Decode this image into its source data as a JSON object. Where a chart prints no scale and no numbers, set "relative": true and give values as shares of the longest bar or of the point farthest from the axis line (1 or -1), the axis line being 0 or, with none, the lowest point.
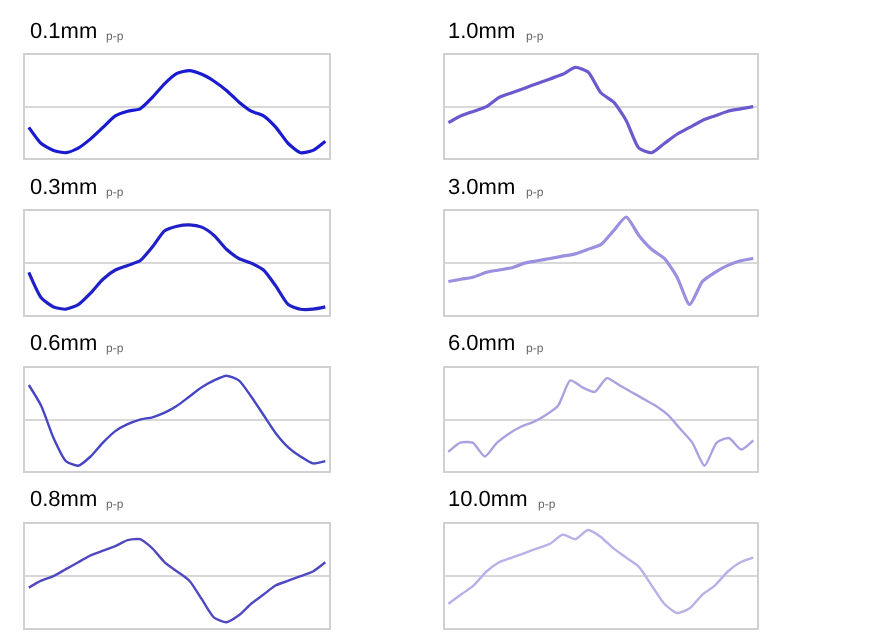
{
  "chart_data": [
    {
      "type": "line",
      "title": "0.1mm",
      "subtitle": "p-p",
      "relative": true,
      "marker": "none",
      "categories": [
        null,
        null,
        null,
        null,
        null,
        null,
        null,
        null,
        null,
        null,
        null,
        null,
        null,
        null,
        null,
        null,
        null,
        null,
        null,
        null,
        null,
        null,
        null,
        null,
        null
      ],
      "series": [
        {
          "color": "#1a1ad0",
          "values": [
            -0.45,
            -0.8,
            -0.95,
            -1.0,
            -0.9,
            -0.7,
            -0.45,
            -0.2,
            -0.1,
            -0.05,
            0.2,
            0.5,
            0.72,
            0.78,
            0.7,
            0.55,
            0.35,
            0.1,
            -0.1,
            -0.2,
            -0.45,
            -0.8,
            -1.0,
            -0.95,
            -0.75
          ]
        }
      ]
    },
    {
      "type": "line",
      "title": "1.0mm",
      "subtitle": "p-p",
      "relative": true,
      "marker": "none",
      "categories": [
        null,
        null,
        null,
        null,
        null,
        null,
        null,
        null,
        null,
        null,
        null,
        null,
        null,
        null,
        null,
        null,
        null,
        null,
        null,
        null,
        null,
        null,
        null,
        null,
        null
      ],
      "series": [
        {
          "color": "#6a5acd",
          "values": [
            -0.35,
            -0.2,
            -0.1,
            0.0,
            0.2,
            0.3,
            0.4,
            0.5,
            0.6,
            0.7,
            0.85,
            0.75,
            0.3,
            0.1,
            -0.3,
            -0.9,
            -1.0,
            -0.8,
            -0.6,
            -0.45,
            -0.3,
            -0.2,
            -0.1,
            -0.05,
            0.0
          ]
        }
      ]
    },
    {
      "type": "line",
      "title": "0.3mm",
      "subtitle": "p-p",
      "relative": true,
      "marker": "none",
      "categories": [
        null,
        null,
        null,
        null,
        null,
        null,
        null,
        null,
        null,
        null,
        null,
        null,
        null,
        null,
        null,
        null,
        null,
        null,
        null,
        null,
        null,
        null,
        null,
        null,
        null
      ],
      "series": [
        {
          "color": "#2020c8",
          "values": [
            -0.2,
            -0.75,
            -0.95,
            -1.0,
            -0.9,
            -0.65,
            -0.35,
            -0.15,
            -0.05,
            0.05,
            0.35,
            0.7,
            0.8,
            0.83,
            0.78,
            0.6,
            0.3,
            0.1,
            0.0,
            -0.15,
            -0.5,
            -0.9,
            -1.0,
            -1.0,
            -0.95
          ]
        }
      ]
    },
    {
      "type": "line",
      "title": "3.0mm",
      "subtitle": "p-p",
      "relative": true,
      "marker": "none",
      "categories": [
        null,
        null,
        null,
        null,
        null,
        null,
        null,
        null,
        null,
        null,
        null,
        null,
        null,
        null,
        null,
        null,
        null,
        null,
        null,
        null,
        null,
        null,
        null,
        null,
        null
      ],
      "series": [
        {
          "color": "#9a90e0",
          "values": [
            -0.4,
            -0.35,
            -0.3,
            -0.2,
            -0.15,
            -0.1,
            0.0,
            0.05,
            0.1,
            0.15,
            0.2,
            0.3,
            0.4,
            0.7,
            1.0,
            0.6,
            0.3,
            0.1,
            -0.3,
            -0.9,
            -0.4,
            -0.2,
            -0.05,
            0.05,
            0.1
          ]
        }
      ]
    },
    {
      "type": "line",
      "title": "0.6mm",
      "subtitle": "p-p",
      "relative": true,
      "marker": "none",
      "categories": [
        null,
        null,
        null,
        null,
        null,
        null,
        null,
        null,
        null,
        null,
        null,
        null,
        null,
        null,
        null,
        null,
        null,
        null,
        null,
        null,
        null,
        null,
        null,
        null,
        null
      ],
      "series": [
        {
          "color": "#4646c4",
          "values": [
            0.75,
            0.3,
            -0.4,
            -0.9,
            -1.0,
            -0.8,
            -0.5,
            -0.25,
            -0.1,
            0.0,
            0.05,
            0.15,
            0.3,
            0.5,
            0.7,
            0.85,
            0.95,
            0.85,
            0.5,
            0.1,
            -0.3,
            -0.6,
            -0.8,
            -0.95,
            -0.9
          ]
        }
      ]
    },
    {
      "type": "line",
      "title": "6.0mm",
      "subtitle": "p-p",
      "relative": true,
      "marker": "none",
      "categories": [
        null,
        null,
        null,
        null,
        null,
        null,
        null,
        null,
        null,
        null,
        null,
        null,
        null,
        null,
        null,
        null,
        null,
        null,
        null,
        null,
        null,
        null,
        null,
        null,
        null,
        null
      ],
      "series": [
        {
          "color": "#aaa2e0",
          "values": [
            -0.7,
            -0.5,
            -0.5,
            -0.8,
            -0.5,
            -0.3,
            -0.15,
            -0.05,
            0.1,
            0.3,
            0.85,
            0.7,
            0.6,
            0.9,
            0.75,
            0.6,
            0.45,
            0.3,
            0.1,
            -0.2,
            -0.5,
            -1.0,
            -0.5,
            -0.4,
            -0.65,
            -0.45
          ]
        }
      ]
    },
    {
      "type": "line",
      "title": "0.8mm",
      "subtitle": "p-p",
      "relative": true,
      "marker": "none",
      "categories": [
        null,
        null,
        null,
        null,
        null,
        null,
        null,
        null,
        null,
        null,
        null,
        null,
        null,
        null,
        null,
        null,
        null,
        null,
        null,
        null,
        null,
        null,
        null,
        null,
        null
      ],
      "series": [
        {
          "color": "#5048c0",
          "values": [
            -0.25,
            -0.1,
            0.0,
            0.15,
            0.3,
            0.45,
            0.55,
            0.65,
            0.78,
            0.8,
            0.6,
            0.3,
            0.1,
            -0.1,
            -0.5,
            -0.9,
            -1.0,
            -0.85,
            -0.6,
            -0.4,
            -0.2,
            -0.1,
            0.0,
            0.1,
            0.3
          ]
        }
      ]
    },
    {
      "type": "line",
      "title": "10.0mm",
      "subtitle": "p-p",
      "relative": true,
      "marker": "none",
      "categories": [
        null,
        null,
        null,
        null,
        null,
        null,
        null,
        null,
        null,
        null,
        null,
        null,
        null,
        null,
        null,
        null,
        null,
        null,
        null,
        null,
        null,
        null,
        null,
        null,
        null
      ],
      "series": [
        {
          "color": "#b8b0e6",
          "values": [
            -0.6,
            -0.4,
            -0.2,
            0.1,
            0.3,
            0.4,
            0.5,
            0.6,
            0.7,
            0.9,
            0.8,
            1.0,
            0.85,
            0.6,
            0.4,
            0.2,
            -0.2,
            -0.6,
            -0.8,
            -0.7,
            -0.4,
            -0.2,
            0.1,
            0.3,
            0.4
          ]
        }
      ]
    }
  ]
}
